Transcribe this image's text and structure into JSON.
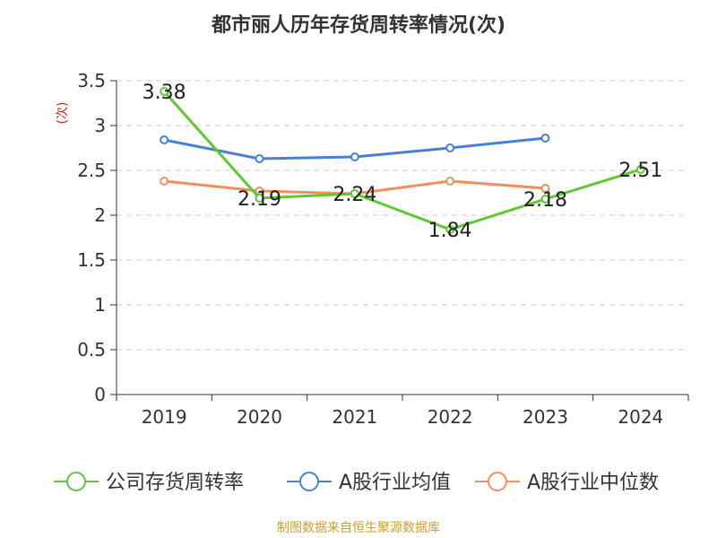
{
  "chart_data": {
    "type": "line",
    "title": "都市丽人历年存货周转率情况(次)",
    "ylabel": "(次)",
    "categories": [
      "2019",
      "2020",
      "2021",
      "2022",
      "2023",
      "2024"
    ],
    "ylim": [
      0,
      3.5
    ],
    "yticks": [
      "0",
      "0.5",
      "1",
      "1.5",
      "2",
      "2.5",
      "3",
      "3.5"
    ],
    "grid": true,
    "legend_position": "bottom",
    "series": [
      {
        "name": "公司存货周转率",
        "color": "#5fc832",
        "values": [
          3.38,
          2.19,
          2.24,
          1.84,
          2.18,
          2.51
        ],
        "labels": [
          "3.38",
          "2.19",
          "2.24",
          "1.84",
          "2.18",
          "2.51"
        ],
        "show_labels": true
      },
      {
        "name": "A股行业均值",
        "color": "#4a7fd6",
        "values": [
          2.84,
          2.63,
          2.65,
          2.75,
          2.86,
          null
        ],
        "show_labels": false
      },
      {
        "name": "A股行业中位数",
        "color": "#f09060",
        "values": [
          2.38,
          2.27,
          2.24,
          2.38,
          2.3,
          null
        ],
        "show_labels": false
      }
    ]
  },
  "source": {
    "text": "制图数据来自恒生聚源数据库",
    "color": "#c8a030"
  },
  "ylabel_color": "#cc2222"
}
